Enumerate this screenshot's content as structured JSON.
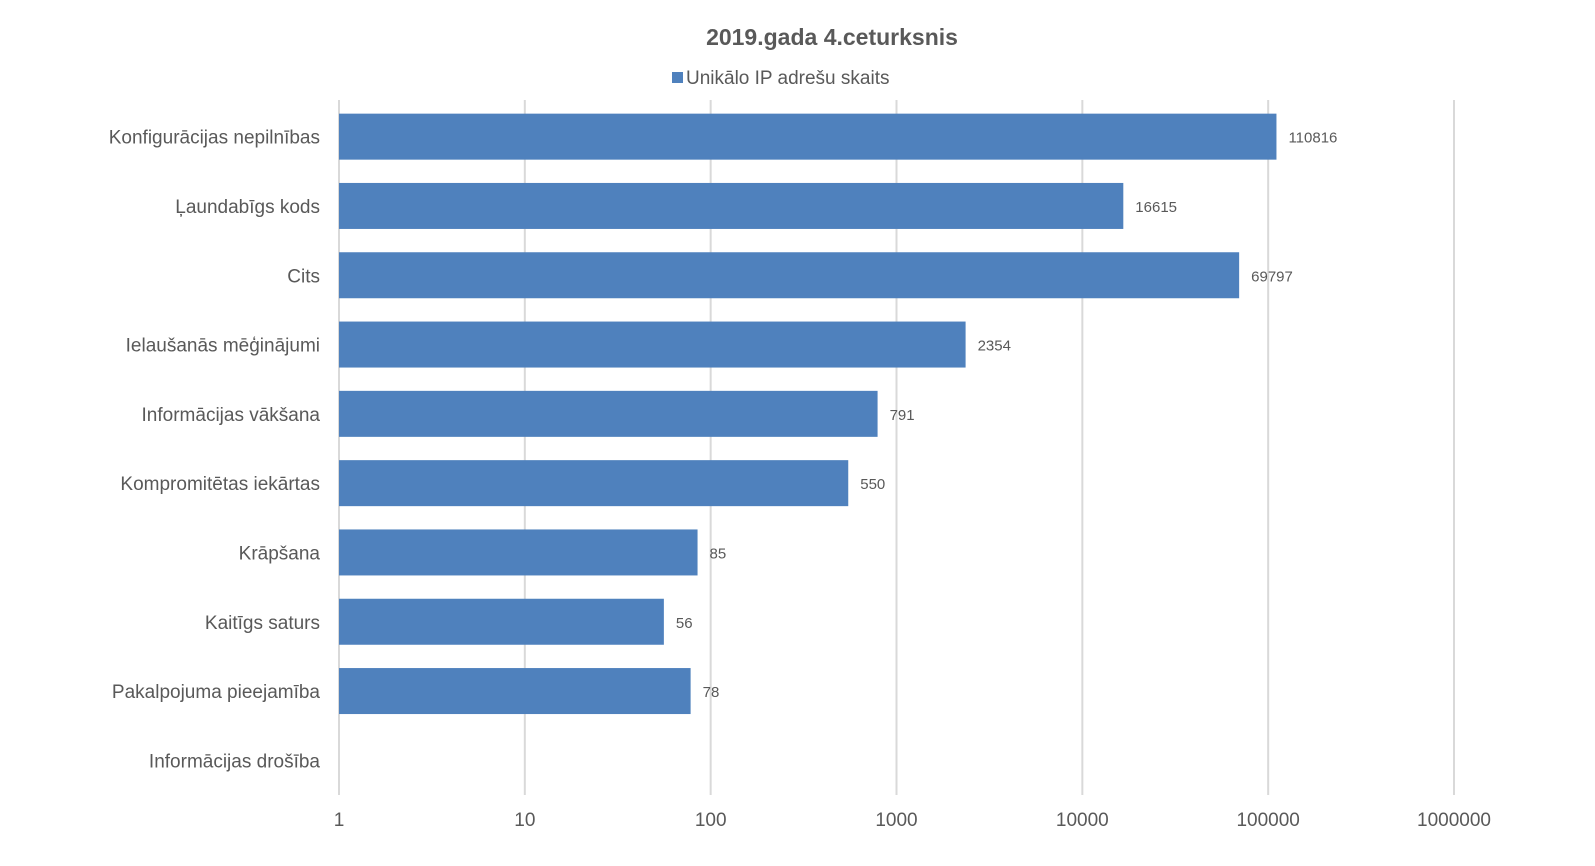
{
  "chart_data": {
    "type": "bar",
    "orientation": "horizontal",
    "title": "2019.gada 4.ceturksnis",
    "xscale": "log",
    "xlim": [
      1,
      1000000
    ],
    "xticks": [
      "1",
      "10",
      "100",
      "1000",
      "10000",
      "100000",
      "1000000"
    ],
    "grid": true,
    "legend_position": "top",
    "color": "#4f81bd",
    "series": [
      {
        "name": "Unikālo IP adrešu skaits",
        "values": [
          110816,
          16615,
          69797,
          2354,
          791,
          550,
          85,
          56,
          78,
          null
        ]
      }
    ],
    "categories": [
      "Konfigurācijas nepilnības",
      "Ļaundabīgs kods",
      "Cits",
      "Ielaušanās mēģinājumi",
      "Informācijas vākšana",
      "Kompromitētas iekārtas",
      "Krāpšana",
      "Kaitīgs saturs",
      "Pakalpojuma pieejamība",
      "Informācijas drošība"
    ],
    "data_labels": [
      "110816",
      "16615",
      "69797",
      "2354",
      "791",
      "550",
      "85",
      "56",
      "78",
      ""
    ]
  }
}
